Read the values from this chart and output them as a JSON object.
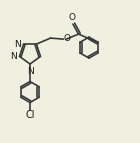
{
  "bg_color": "#f0f0e0",
  "bond_color": "#3a3a3a",
  "text_color": "#1a1a1a",
  "bond_width": 1.2,
  "font_size": 6.5,
  "figsize": [
    1.4,
    1.43
  ],
  "dpi": 100,
  "xlim": [
    0,
    14
  ],
  "ylim": [
    0,
    14.3
  ]
}
